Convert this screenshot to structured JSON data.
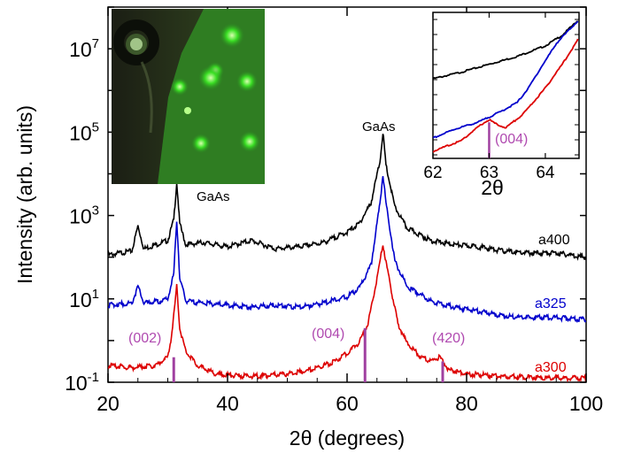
{
  "chart_data": {
    "type": "line",
    "title": "",
    "xlabel": "2θ (degrees)",
    "ylabel": "Intensity (arb. units)",
    "xlim": [
      20,
      100
    ],
    "ylim_log10": [
      -1,
      8
    ],
    "yscale": "log",
    "xticks": [
      "20",
      "40",
      "60",
      "80",
      "100"
    ],
    "yticks": [
      {
        "base": "10",
        "exp": "-1",
        "log": -1
      },
      {
        "base": "10",
        "exp": "1",
        "log": 1
      },
      {
        "base": "10",
        "exp": "3",
        "log": 3
      },
      {
        "base": "10",
        "exp": "5",
        "log": 5
      },
      {
        "base": "10",
        "exp": "7",
        "log": 7
      }
    ],
    "series": [
      {
        "name": "a400",
        "color": "#000000",
        "x": [
          20,
          24,
          25,
          26,
          29,
          30,
          31,
          31.5,
          32,
          33,
          36,
          40,
          44,
          48,
          52,
          56,
          60,
          62,
          64,
          65.5,
          66,
          66.5,
          68,
          70,
          74,
          78,
          82,
          86,
          90,
          95,
          100
        ],
        "log_y": [
          2.05,
          2.15,
          2.75,
          2.2,
          2.35,
          2.4,
          2.9,
          3.8,
          2.8,
          2.3,
          2.35,
          2.25,
          2.4,
          2.2,
          2.25,
          2.35,
          2.6,
          2.8,
          3.3,
          4.3,
          5.0,
          4.2,
          3.2,
          2.7,
          2.4,
          2.3,
          2.25,
          2.15,
          2.1,
          2.1,
          2.0
        ]
      },
      {
        "name": "a325",
        "color": "#0000cc",
        "x": [
          20,
          24,
          25,
          26,
          29,
          30,
          31,
          31.5,
          32,
          33,
          36,
          40,
          44,
          48,
          52,
          56,
          60,
          62,
          64,
          65.5,
          66,
          66.5,
          68,
          70,
          74,
          78,
          82,
          86,
          90,
          95,
          100
        ],
        "log_y": [
          0.85,
          0.9,
          1.3,
          0.9,
          0.95,
          1.0,
          1.6,
          2.9,
          1.5,
          0.95,
          0.9,
          0.85,
          0.8,
          0.85,
          0.8,
          0.9,
          1.05,
          1.25,
          1.8,
          3.3,
          4.0,
          3.3,
          1.9,
          1.3,
          0.95,
          0.8,
          0.7,
          0.6,
          0.55,
          0.55,
          0.5
        ]
      },
      {
        "name": "a300",
        "color": "#dd0000",
        "x": [
          20,
          24,
          28,
          30,
          30.5,
          31,
          31.5,
          32,
          33,
          35,
          38,
          42,
          46,
          50,
          54,
          58,
          60,
          62,
          63.5,
          65,
          66,
          67,
          68.5,
          70,
          72,
          74,
          75.5,
          76,
          77,
          80,
          85,
          90,
          95,
          100
        ],
        "log_y": [
          -0.6,
          -0.65,
          -0.6,
          -0.4,
          0.0,
          0.6,
          1.3,
          0.3,
          -0.25,
          -0.6,
          -0.8,
          -0.85,
          -0.85,
          -0.8,
          -0.7,
          -0.5,
          -0.3,
          -0.05,
          0.4,
          1.5,
          2.3,
          1.5,
          0.4,
          -0.05,
          -0.35,
          -0.5,
          -0.4,
          -0.5,
          -0.7,
          -0.8,
          -0.85,
          -0.88,
          -0.9,
          -0.9
        ]
      }
    ],
    "markers": [
      {
        "label": "(002)",
        "x": 31,
        "log_top": -0.4
      },
      {
        "label": "(004)",
        "x": 63,
        "log_top": 0.3
      },
      {
        "label": "(420)",
        "x": 76,
        "log_top": -0.5
      }
    ],
    "annotations": [
      {
        "text": "GaAs",
        "x": 31.5
      },
      {
        "text": "GaAs",
        "x": 66
      }
    ],
    "inset": {
      "xlim": [
        62,
        64.6
      ],
      "xticks": [
        "62",
        "63",
        "64"
      ],
      "xlabel": "2θ",
      "marker_label": "(004)",
      "marker_x": 63,
      "series": [
        {
          "name": "a400",
          "color": "#000000",
          "x": [
            62,
            62.5,
            63,
            63.5,
            64,
            64.3,
            64.6
          ],
          "y": [
            0.55,
            0.6,
            0.66,
            0.72,
            0.8,
            0.88,
            1.0
          ]
        },
        {
          "name": "a325",
          "color": "#0000cc",
          "x": [
            62,
            62.4,
            62.8,
            63.0,
            63.2,
            63.5,
            63.7,
            63.9,
            64.2,
            64.6
          ],
          "y": [
            0.1,
            0.17,
            0.22,
            0.26,
            0.3,
            0.37,
            0.48,
            0.62,
            0.82,
            1.0
          ]
        },
        {
          "name": "a300",
          "color": "#dd0000",
          "x": [
            62,
            62.5,
            62.85,
            63.0,
            63.15,
            63.3,
            63.6,
            63.8,
            64.0,
            64.3,
            64.6
          ],
          "y": [
            0.0,
            0.08,
            0.2,
            0.24,
            0.2,
            0.18,
            0.28,
            0.38,
            0.48,
            0.66,
            0.86
          ]
        }
      ]
    }
  }
}
